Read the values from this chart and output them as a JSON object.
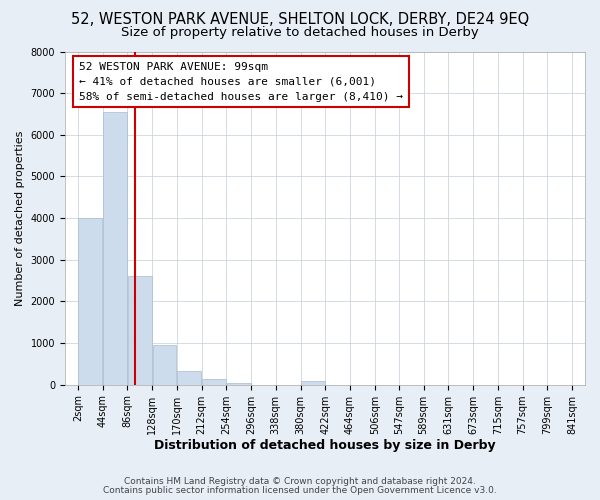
{
  "title": "52, WESTON PARK AVENUE, SHELTON LOCK, DERBY, DE24 9EQ",
  "subtitle": "Size of property relative to detached houses in Derby",
  "xlabel": "Distribution of detached houses by size in Derby",
  "ylabel": "Number of detached properties",
  "bin_edges": [
    2,
    44,
    86,
    128,
    170,
    212,
    254,
    296,
    338,
    380,
    422,
    464,
    506,
    547,
    589,
    631,
    673,
    715,
    757,
    799,
    841
  ],
  "bin_labels": [
    "2sqm",
    "44sqm",
    "86sqm",
    "128sqm",
    "170sqm",
    "212sqm",
    "254sqm",
    "296sqm",
    "338sqm",
    "380sqm",
    "422sqm",
    "464sqm",
    "506sqm",
    "547sqm",
    "589sqm",
    "631sqm",
    "673sqm",
    "715sqm",
    "757sqm",
    "799sqm",
    "841sqm"
  ],
  "bar_heights": [
    4000,
    6550,
    2600,
    950,
    320,
    130,
    50,
    0,
    0,
    100,
    0,
    0,
    0,
    0,
    0,
    0,
    0,
    0,
    0,
    0
  ],
  "bar_color": "#ccdcec",
  "bar_edgecolor": "#aabccc",
  "property_size": 99,
  "red_line_color": "#cc0000",
  "annotation_line1": "52 WESTON PARK AVENUE: 99sqm",
  "annotation_line2": "← 41% of detached houses are smaller (6,001)",
  "annotation_line3": "58% of semi-detached houses are larger (8,410) →",
  "annotation_box_edgecolor": "#cc0000",
  "ylim": [
    0,
    8000
  ],
  "yticks": [
    0,
    1000,
    2000,
    3000,
    4000,
    5000,
    6000,
    7000,
    8000
  ],
  "footnote1": "Contains HM Land Registry data © Crown copyright and database right 2024.",
  "footnote2": "Contains public sector information licensed under the Open Government Licence v3.0.",
  "bg_color": "#e8eef5",
  "plot_bg_color": "#ffffff",
  "grid_color": "#c5cdd8",
  "title_fontsize": 10.5,
  "subtitle_fontsize": 9.5,
  "xlabel_fontsize": 9,
  "ylabel_fontsize": 8,
  "tick_fontsize": 7,
  "annot_fontsize": 8,
  "footnote_fontsize": 6.5
}
